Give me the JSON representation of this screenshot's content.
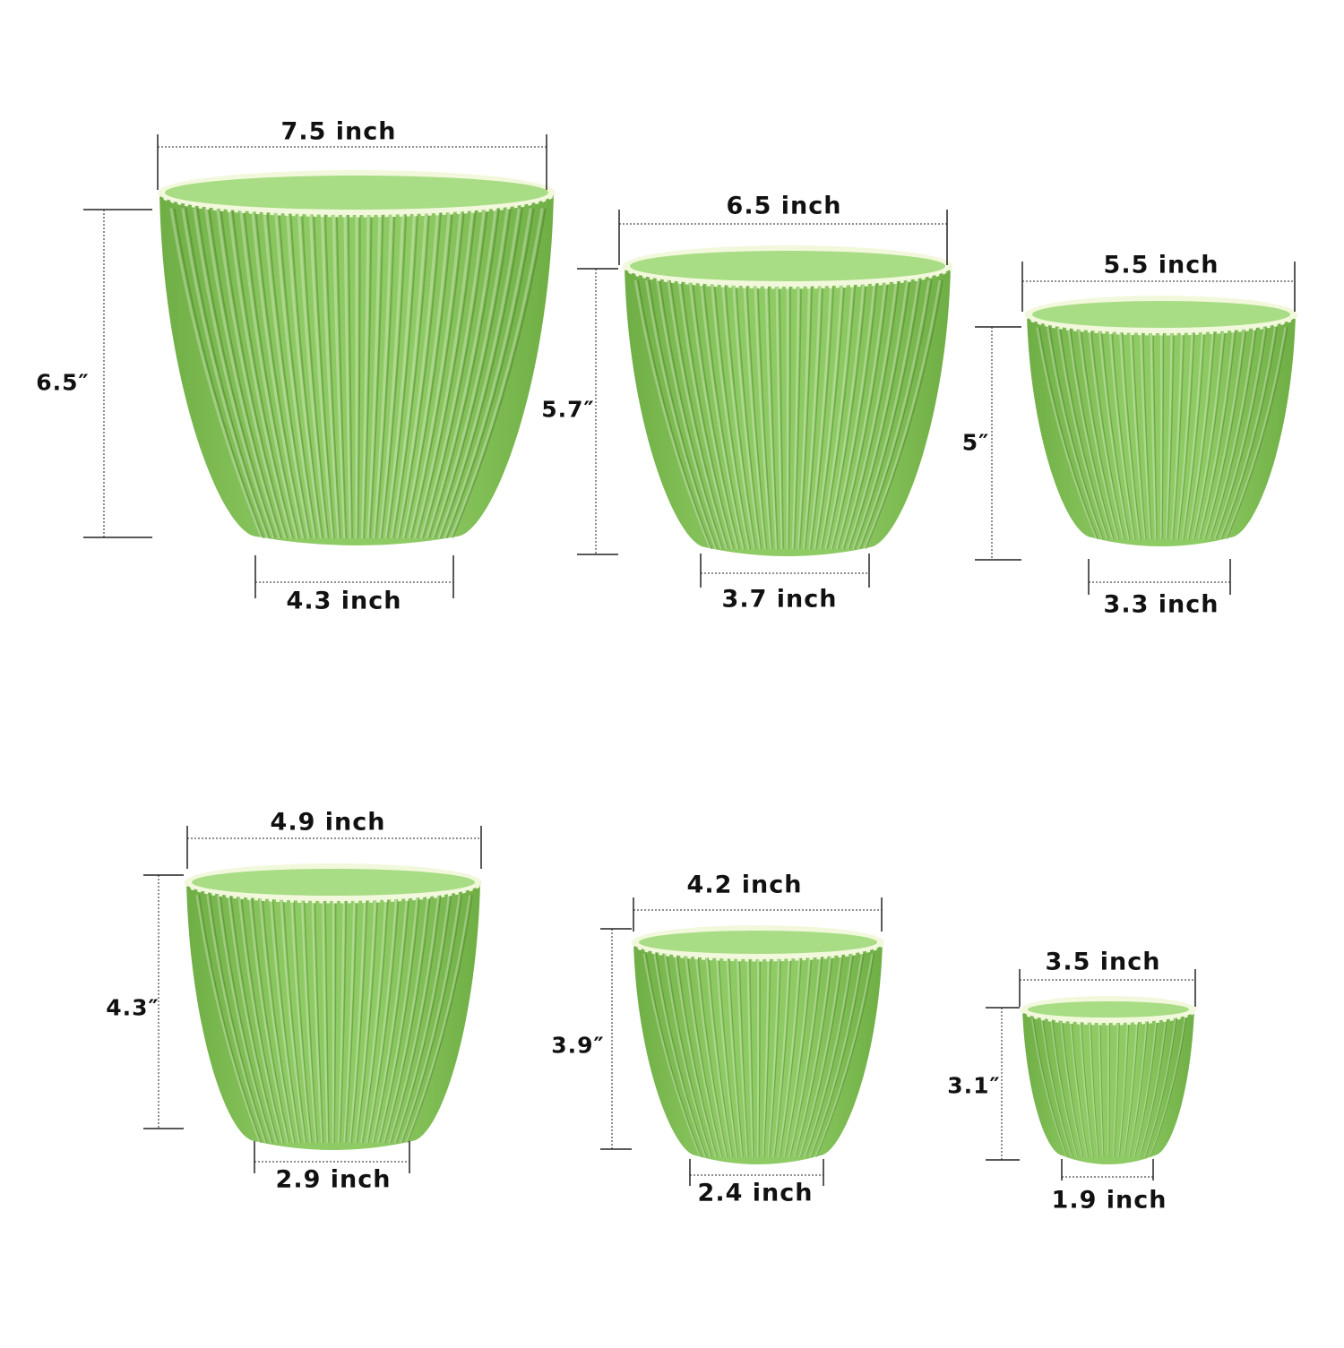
{
  "background": "#ffffff",
  "colors": {
    "pot_body": "#8fcb64",
    "pot_body_dark": "#6fae45",
    "pot_inner": "#a8dc85",
    "rim": "#f2f8dc",
    "dim_line": "#222222"
  },
  "pots": [
    {
      "top_label": "7.5 inch",
      "bottom_label": "4.3 inch",
      "height_label": "6.5″"
    },
    {
      "top_label": "6.5 inch",
      "bottom_label": "3.7 inch",
      "height_label": "5.7″"
    },
    {
      "top_label": "5.5 inch",
      "bottom_label": "3.3 inch",
      "height_label": "5″"
    },
    {
      "top_label": "4.9 inch",
      "bottom_label": "2.9 inch",
      "height_label": "4.3″"
    },
    {
      "top_label": "4.2 inch",
      "bottom_label": "2.4 inch",
      "height_label": "3.9″"
    },
    {
      "top_label": "3.5 inch",
      "bottom_label": "1.9 inch",
      "height_label": "3.1″"
    }
  ]
}
